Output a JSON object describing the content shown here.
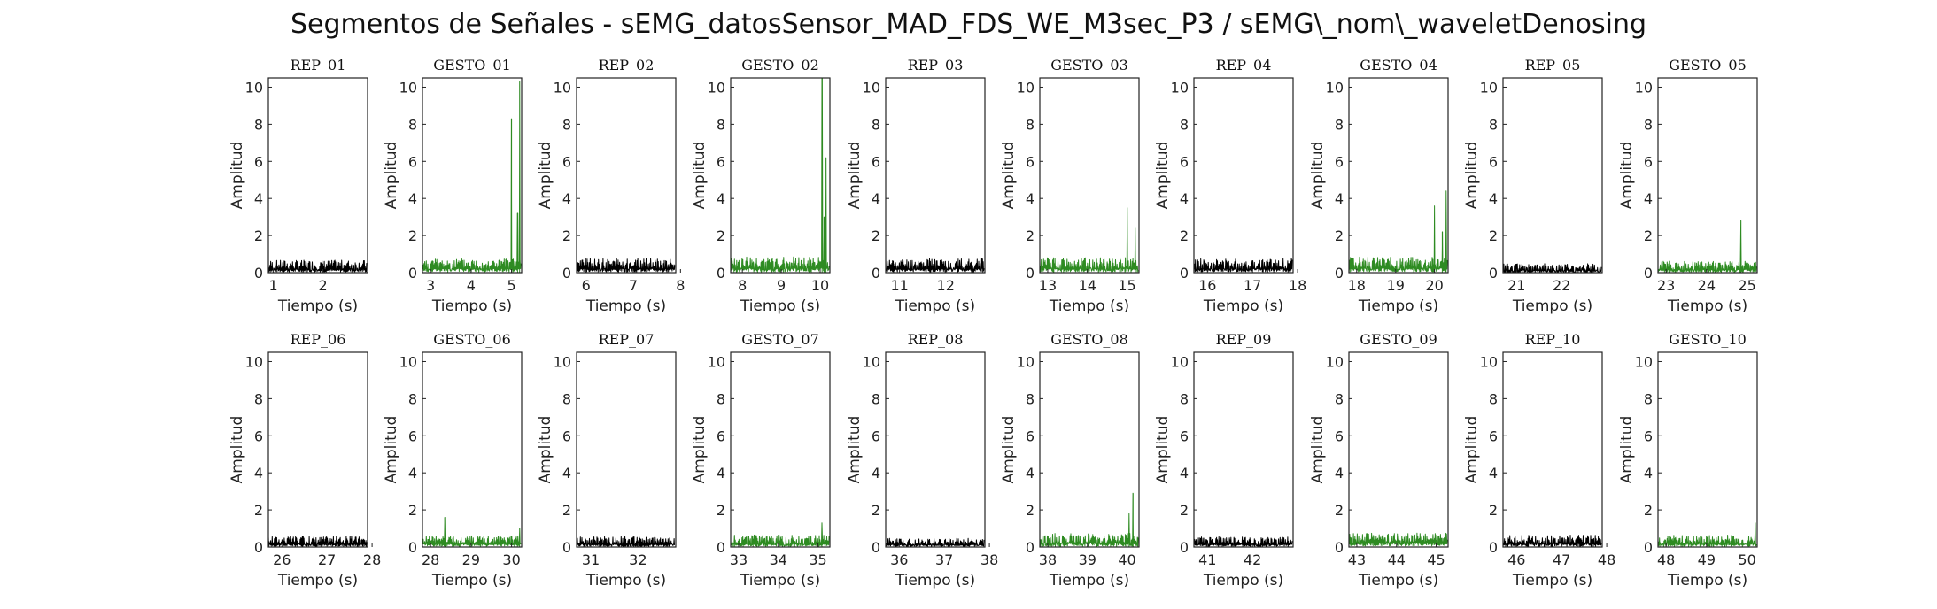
{
  "chart_data": {
    "title": "Segmentos de Señales - sEMG_datosSensor_MAD_FDS_WE_M3sec_P3 / sEMG\\_nom\\_waveletDenosing",
    "type": "line",
    "ylabel": "Amplitud",
    "xlabel": "Tiempo (s)",
    "ylim": [
      0,
      10.5
    ],
    "yticks": [
      0,
      2,
      4,
      6,
      8,
      10
    ],
    "colors": {
      "rep": "#000000",
      "gesto": "#2e8b22"
    },
    "grid": false,
    "panels": [
      {
        "title": "REP_01",
        "kind": "rep",
        "xlim": [
          0.9,
          2.9
        ],
        "xticks": [
          1,
          2
        ],
        "base": 0.45,
        "noise": 0.35,
        "spikes": []
      },
      {
        "title": "GESTO_01",
        "kind": "gesto",
        "xlim": [
          2.8,
          5.25
        ],
        "xticks": [
          3,
          4,
          5
        ],
        "base": 0.5,
        "noise": 0.4,
        "spikes": [
          [
            5.0,
            8.3
          ],
          [
            5.2,
            10.3
          ],
          [
            5.15,
            3.2
          ]
        ]
      },
      {
        "title": "REP_02",
        "kind": "rep",
        "xlim": [
          5.8,
          7.9
        ],
        "xticks": [
          6,
          7,
          8
        ],
        "base": 0.5,
        "noise": 0.4,
        "spikes": []
      },
      {
        "title": "GESTO_02",
        "kind": "gesto",
        "xlim": [
          7.7,
          10.25
        ],
        "xticks": [
          8,
          9,
          10
        ],
        "base": 0.55,
        "noise": 0.45,
        "spikes": [
          [
            10.05,
            10.5
          ],
          [
            10.15,
            6.2
          ],
          [
            10.1,
            3.0
          ]
        ]
      },
      {
        "title": "REP_03",
        "kind": "rep",
        "xlim": [
          10.7,
          12.85
        ],
        "xticks": [
          11,
          12
        ],
        "base": 0.5,
        "noise": 0.4,
        "spikes": []
      },
      {
        "title": "GESTO_03",
        "kind": "gesto",
        "xlim": [
          12.8,
          15.3
        ],
        "xticks": [
          13,
          14,
          15
        ],
        "base": 0.5,
        "noise": 0.45,
        "spikes": [
          [
            15.0,
            3.5
          ],
          [
            15.2,
            2.4
          ]
        ]
      },
      {
        "title": "REP_04",
        "kind": "rep",
        "xlim": [
          15.7,
          17.9
        ],
        "xticks": [
          16,
          17,
          18
        ],
        "base": 0.5,
        "noise": 0.4,
        "spikes": []
      },
      {
        "title": "GESTO_04",
        "kind": "gesto",
        "xlim": [
          17.8,
          20.35
        ],
        "xticks": [
          18,
          19,
          20
        ],
        "base": 0.55,
        "noise": 0.45,
        "spikes": [
          [
            20.0,
            3.6
          ],
          [
            20.3,
            4.4
          ],
          [
            20.2,
            2.2
          ]
        ]
      },
      {
        "title": "REP_05",
        "kind": "rep",
        "xlim": [
          20.7,
          22.9
        ],
        "xticks": [
          21,
          22
        ],
        "base": 0.2,
        "noise": 0.3,
        "spikes": []
      },
      {
        "title": "GESTO_05",
        "kind": "gesto",
        "xlim": [
          22.8,
          25.25
        ],
        "xticks": [
          23,
          24,
          25
        ],
        "base": 0.35,
        "noise": 0.35,
        "spikes": [
          [
            24.85,
            2.8
          ]
        ]
      },
      {
        "title": "REP_06",
        "kind": "rep",
        "xlim": [
          25.7,
          27.9
        ],
        "xticks": [
          26,
          27,
          28
        ],
        "base": 0.4,
        "noise": 0.3,
        "spikes": []
      },
      {
        "title": "GESTO_06",
        "kind": "gesto",
        "xlim": [
          27.8,
          30.25
        ],
        "xticks": [
          28,
          29,
          30
        ],
        "base": 0.45,
        "noise": 0.3,
        "spikes": [
          [
            28.35,
            1.6
          ],
          [
            30.2,
            1.0
          ]
        ]
      },
      {
        "title": "REP_07",
        "kind": "rep",
        "xlim": [
          30.7,
          32.8
        ],
        "xticks": [
          31,
          32
        ],
        "base": 0.35,
        "noise": 0.3,
        "spikes": []
      },
      {
        "title": "GESTO_07",
        "kind": "gesto",
        "xlim": [
          32.8,
          35.3
        ],
        "xticks": [
          33,
          34,
          35
        ],
        "base": 0.4,
        "noise": 0.35,
        "spikes": [
          [
            35.1,
            1.3
          ]
        ]
      },
      {
        "title": "REP_08",
        "kind": "rep",
        "xlim": [
          35.7,
          37.9
        ],
        "xticks": [
          36,
          37,
          38
        ],
        "base": 0.3,
        "noise": 0.25,
        "spikes": []
      },
      {
        "title": "GESTO_08",
        "kind": "gesto",
        "xlim": [
          37.8,
          40.3
        ],
        "xticks": [
          38,
          39,
          40
        ],
        "base": 0.45,
        "noise": 0.4,
        "spikes": [
          [
            40.15,
            2.9
          ],
          [
            40.05,
            1.8
          ]
        ]
      },
      {
        "title": "REP_09",
        "kind": "rep",
        "xlim": [
          40.7,
          42.9
        ],
        "xticks": [
          41,
          42
        ],
        "base": 0.35,
        "noise": 0.3,
        "spikes": []
      },
      {
        "title": "GESTO_09",
        "kind": "gesto",
        "xlim": [
          42.8,
          45.3
        ],
        "xticks": [
          43,
          44,
          45
        ],
        "base": 0.6,
        "noise": 0.35,
        "spikes": []
      },
      {
        "title": "REP_10",
        "kind": "rep",
        "xlim": [
          45.7,
          47.9
        ],
        "xticks": [
          46,
          47,
          48
        ],
        "base": 0.4,
        "noise": 0.35,
        "spikes": []
      },
      {
        "title": "GESTO_10",
        "kind": "gesto",
        "xlim": [
          47.8,
          50.25
        ],
        "xticks": [
          48,
          49,
          50
        ],
        "base": 0.4,
        "noise": 0.35,
        "spikes": [
          [
            50.2,
            1.3
          ]
        ]
      }
    ]
  }
}
